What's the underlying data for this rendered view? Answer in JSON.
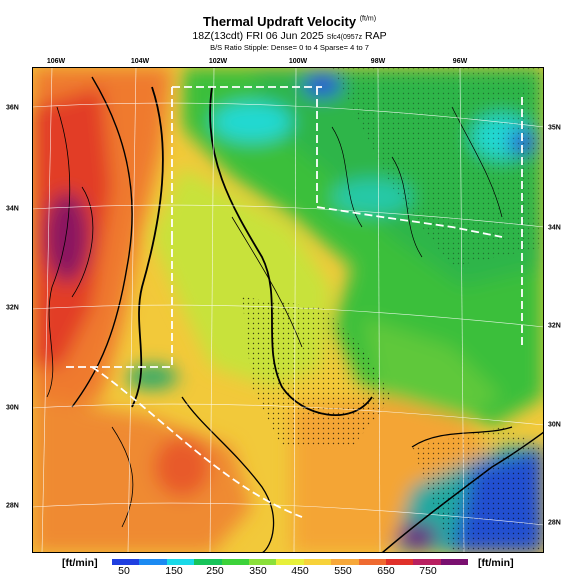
{
  "header": {
    "title": "Thermal Updraft Velocity",
    "title_unit": "(ft/m)",
    "subtitle": "18Z(13cdt) FRI 06 Jun 2025",
    "subtitle_small": "Sfc4(0957z",
    "model": "RAP",
    "stipple_note": "B/S Ratio Stipple: Dense= 0 to 4 Sparse= 4 to 7"
  },
  "map": {
    "lon_labels": [
      "106W",
      "104W",
      "102W",
      "100W",
      "98W",
      "96W"
    ],
    "lat_labels_left": [
      "36N",
      "34N",
      "32N",
      "30N",
      "28N"
    ],
    "lat_labels_right": [
      "35N",
      "34N",
      "32N",
      "30N",
      "28N"
    ]
  },
  "colorbar": {
    "unit_left": "[ft/min]",
    "unit_right": "[ft/min]",
    "ticks": [
      "50",
      "150",
      "250",
      "350",
      "450",
      "550",
      "650",
      "750"
    ],
    "colors": [
      "#1f3fe0",
      "#1b8af2",
      "#19d9e8",
      "#17c45a",
      "#3cd23a",
      "#8be03a",
      "#e7f03a",
      "#f7d23a",
      "#f7a83a",
      "#ef6a30",
      "#e0302a",
      "#b82060",
      "#7a1070"
    ]
  }
}
